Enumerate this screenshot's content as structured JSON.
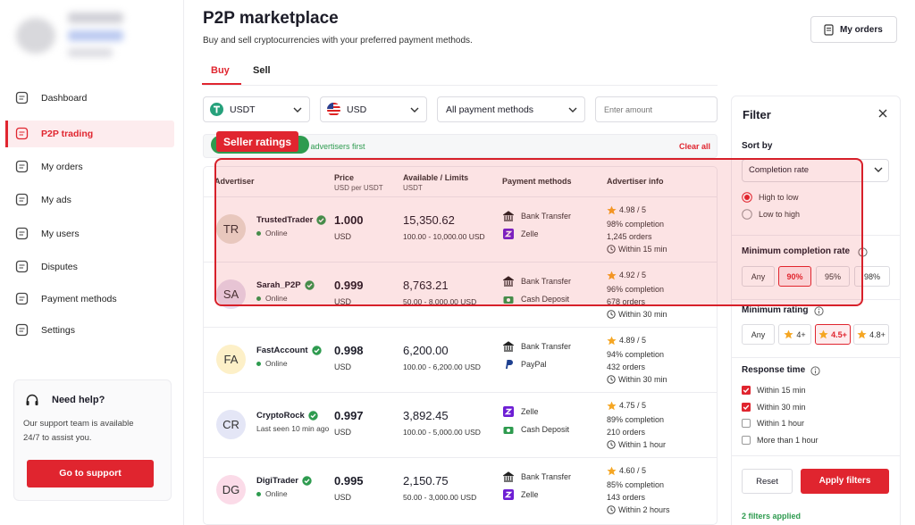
{
  "sidebar": {
    "nav": [
      {
        "label": "Dashboard",
        "active": false
      },
      {
        "label": "P2P trading",
        "active": true
      },
      {
        "label": "My orders",
        "active": false
      },
      {
        "label": "My ads",
        "active": false
      },
      {
        "label": "My users",
        "active": false
      },
      {
        "label": "Disputes",
        "active": false
      },
      {
        "label": "Payment methods",
        "active": false
      },
      {
        "label": "Settings",
        "active": false
      }
    ],
    "help": {
      "title": "Need help?",
      "text": "Our support team is available 24/7 to assist you.",
      "button": "Go to support"
    }
  },
  "header": {
    "title": "P2P marketplace",
    "subtitle": "Buy and sell cryptocurrencies with your preferred payment methods.",
    "button": "My orders"
  },
  "tabs": {
    "items": [
      "Buy",
      "Sell"
    ],
    "active": 0
  },
  "controls": {
    "crypto": "USDT",
    "fiat": "USD",
    "payment": "All payment methods",
    "amount_placeholder": "Enter amount"
  },
  "banner": {
    "text": "d advertisers first",
    "action": "Clear all"
  },
  "annotation": {
    "label": "Seller ratings"
  },
  "table": {
    "columns": [
      {
        "title": "Advertiser"
      },
      {
        "title": "Price",
        "sub": "USD per USDT"
      },
      {
        "title": "Available / Limits",
        "sub": "USDT"
      },
      {
        "title": "Payment methods"
      },
      {
        "title": "Advertiser info"
      }
    ],
    "rows": [
      {
        "initials": "TR",
        "name": "TrustedTrader",
        "status": "Online",
        "online": true,
        "price": "1.000",
        "currency": "USD",
        "available": "15,350.62",
        "limits": "100.00 - 10,000.00 USD",
        "payments": [
          "Bank Transfer",
          "Zelle"
        ],
        "rating": "4.98 / 5",
        "completion": "98% completion",
        "orders": "1,245 orders",
        "response": "Within 15 min"
      },
      {
        "initials": "SA",
        "name": "Sarah_P2P",
        "status": "Online",
        "online": true,
        "price": "0.999",
        "currency": "USD",
        "available": "8,763.21",
        "limits": "50.00 - 8,000.00 USD",
        "payments": [
          "Bank Transfer",
          "Cash Deposit"
        ],
        "rating": "4.92 / 5",
        "completion": "96% completion",
        "orders": "678 orders",
        "response": "Within 30 min"
      },
      {
        "initials": "FA",
        "name": "FastAccount",
        "status": "Online",
        "online": true,
        "price": "0.998",
        "currency": "USD",
        "available": "6,200.00",
        "limits": "100.00 - 6,200.00 USD",
        "payments": [
          "Bank Transfer",
          "PayPal"
        ],
        "rating": "4.89 / 5",
        "completion": "94% completion",
        "orders": "432 orders",
        "response": "Within 30 min"
      },
      {
        "initials": "CR",
        "name": "CryptoRock",
        "status": "Last seen 10 min ago",
        "online": false,
        "price": "0.997",
        "currency": "USD",
        "available": "3,892.45",
        "limits": "100.00 - 5,000.00 USD",
        "payments": [
          "Zelle",
          "Cash Deposit"
        ],
        "rating": "4.75 / 5",
        "completion": "89% completion",
        "orders": "210 orders",
        "response": "Within 1 hour"
      },
      {
        "initials": "DG",
        "name": "DigiTrader",
        "status": "Online",
        "online": true,
        "price": "0.995",
        "currency": "USD",
        "available": "2,150.75",
        "limits": "50.00 - 3,000.00 USD",
        "payments": [
          "Bank Transfer",
          "Zelle"
        ],
        "rating": "4.60 / 5",
        "completion": "85% completion",
        "orders": "143 orders",
        "response": "Within 2 hours"
      }
    ]
  },
  "filter": {
    "title": "Filter",
    "sort_label": "Sort by",
    "sort_value": "Completion rate",
    "sort_options": [
      {
        "label": "High to low",
        "checked": true
      },
      {
        "label": "Low to high",
        "checked": false
      }
    ],
    "completion_label": "Minimum completion rate",
    "completion_options": [
      {
        "label": "Any",
        "selected": false
      },
      {
        "label": "90%",
        "selected": true
      },
      {
        "label": "95%",
        "selected": false
      },
      {
        "label": "98%",
        "selected": false
      }
    ],
    "rating_label": "Minimum rating",
    "rating_options": [
      {
        "label": "Any",
        "selected": false,
        "star": false
      },
      {
        "label": "4+",
        "selected": false,
        "star": true
      },
      {
        "label": "4.5+",
        "selected": true,
        "star": true
      },
      {
        "label": "4.8+",
        "selected": false,
        "star": true
      }
    ],
    "response_label": "Response time",
    "response_options": [
      {
        "label": "Within 15 min",
        "checked": true
      },
      {
        "label": "Within 30 min",
        "checked": true
      },
      {
        "label": "Within 1 hour",
        "checked": false
      },
      {
        "label": "More than 1 hour",
        "checked": false
      }
    ],
    "reset": "Reset",
    "apply": "Apply filters",
    "status": "2 filters applied"
  }
}
